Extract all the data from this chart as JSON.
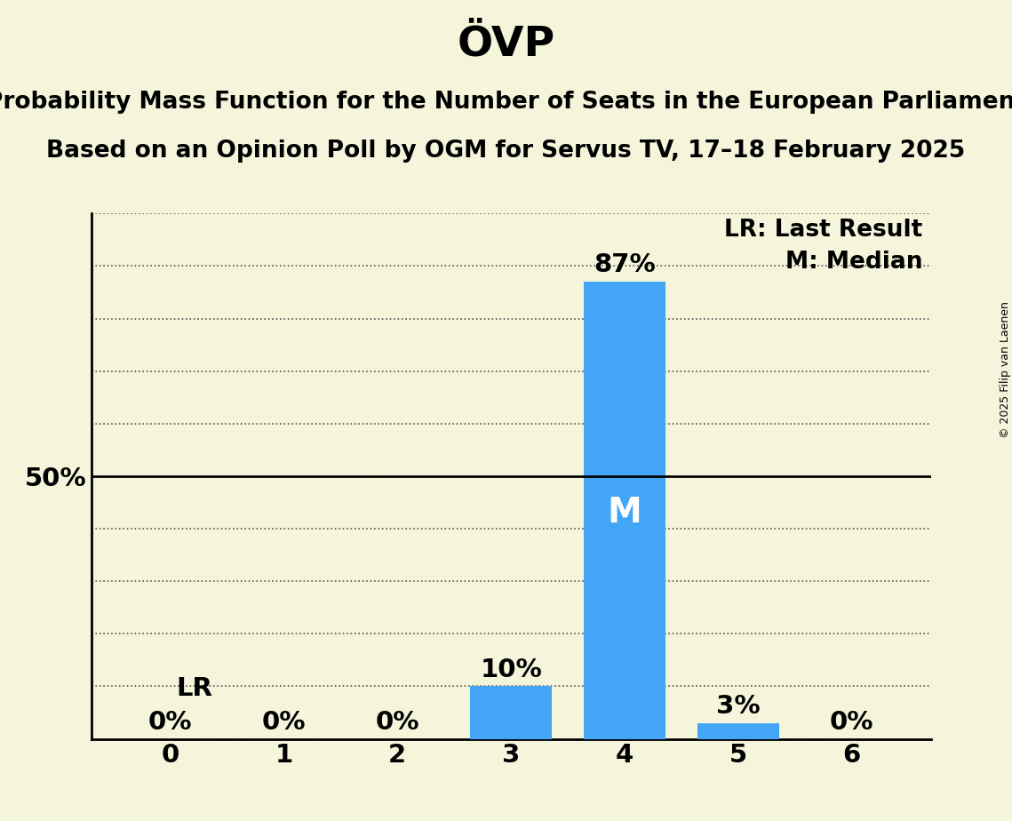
{
  "title": "ÖVP",
  "subtitle1": "Probability Mass Function for the Number of Seats in the European Parliament",
  "subtitle2": "Based on an Opinion Poll by OGM for Servus TV, 17–18 February 2025",
  "copyright": "© 2025 Filip van Laenen",
  "categories": [
    0,
    1,
    2,
    3,
    4,
    5,
    6
  ],
  "values": [
    0.0,
    0.0,
    0.0,
    0.1,
    0.87,
    0.03,
    0.0
  ],
  "bar_color": "#42A5F5",
  "background_color": "#F5F5DC",
  "median_seat": 4,
  "last_result_seat": 0,
  "legend_lr": "LR: Last Result",
  "legend_m": "M: Median",
  "ylim": [
    0,
    1.0
  ],
  "yticks": [
    0.0,
    0.1,
    0.2,
    0.3,
    0.4,
    0.5,
    0.6,
    0.7,
    0.8,
    0.9,
    1.0
  ],
  "bar_width": 0.72,
  "title_fontsize": 34,
  "subtitle_fontsize": 19,
  "tick_fontsize": 21,
  "annotation_fontsize": 21,
  "legend_fontsize": 19,
  "m_fontsize": 28,
  "lr_fontsize": 21,
  "copyright_fontsize": 9
}
